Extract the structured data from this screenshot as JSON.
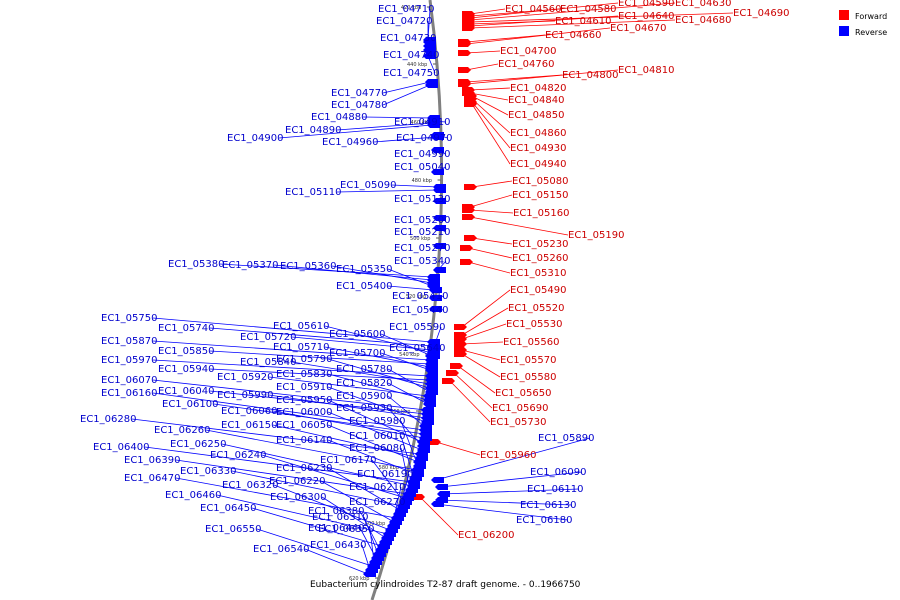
{
  "legend": {
    "forward_label": "Forward",
    "reverse_label": "Reverse"
  },
  "colors": {
    "forward": "#ff0000",
    "reverse": "#0000ff",
    "forward_label": "#cc0000",
    "reverse_label": "#0000cc",
    "backbone": "#808080"
  },
  "caption": "Eubacterium cylindroides T2-87 draft genome. - 0..1966750",
  "ticks": [
    "420 kbp",
    "440 kbp",
    "460 kbp",
    "480 kbp",
    "500 kbp",
    "520 kbp",
    "540 kbp",
    "560 kbp",
    "580 kbp",
    "600 kbp",
    "620 kbp"
  ],
  "forward_genes": [
    "EC1_04560",
    "EC1_04580",
    "EC1_04590",
    "EC1_04630",
    "EC1_04690",
    "EC1_04610",
    "EC1_04640",
    "EC1_04680",
    "EC1_04660",
    "EC1_04670",
    "EC1_04700",
    "EC1_04760",
    "EC1_04800",
    "EC1_04810",
    "EC1_04820",
    "EC1_04840",
    "EC1_04850",
    "EC1_04860",
    "EC1_04930",
    "EC1_04940",
    "EC1_05080",
    "EC1_05150",
    "EC1_05160",
    "EC1_05190",
    "EC1_05230",
    "EC1_05260",
    "EC1_05310",
    "EC1_05490",
    "EC1_05520",
    "EC1_05530",
    "EC1_05560",
    "EC1_05570",
    "EC1_05580",
    "EC1_05650",
    "EC1_05690",
    "EC1_05730",
    "EC1_05960",
    "EC1_06200"
  ],
  "reverse_genes": [
    "EC1_04710",
    "EC1_04720",
    "EC1_04730",
    "EC1_04740",
    "EC1_04750",
    "EC1_04770",
    "EC1_04780",
    "EC1_04880",
    "EC1_04910",
    "EC1_04890",
    "EC1_04900",
    "EC1_04970",
    "EC1_04960",
    "EC1_04990",
    "EC1_05040",
    "EC1_05090",
    "EC1_05110",
    "EC1_05130",
    "EC1_05200",
    "EC1_05210",
    "EC1_05270",
    "EC1_05340",
    "EC1_05380",
    "EC1_05370",
    "EC1_05360",
    "EC1_05350",
    "EC1_05400",
    "EC1_05410",
    "EC1_05440",
    "EC1_05750",
    "EC1_05740",
    "EC1_05720",
    "EC1_05610",
    "EC1_05600",
    "EC1_05590",
    "EC1_05870",
    "EC1_05850",
    "EC1_05710",
    "EC1_05700",
    "EC1_05640",
    "EC1_05970",
    "EC1_05940",
    "EC1_05840",
    "EC1_05790",
    "EC1_05780",
    "EC1_05920",
    "EC1_05830",
    "EC1_05820",
    "EC1_06070",
    "EC1_06040",
    "EC1_05990",
    "EC1_05910",
    "EC1_05900",
    "EC1_06160",
    "EC1_06100",
    "EC1_06060",
    "EC1_05950",
    "EC1_05930",
    "EC1_06000",
    "EC1_06280",
    "EC1_06150",
    "EC1_06050",
    "EC1_05980",
    "EC1_06260",
    "EC1_06140",
    "EC1_06010",
    "EC1_06400",
    "EC1_06250",
    "EC1_06080",
    "EC1_06390",
    "EC1_06240",
    "EC1_06170",
    "EC1_06330",
    "EC1_06230",
    "EC1_06190",
    "EC1_06470",
    "EC1_06220",
    "EC1_06210",
    "EC1_06320",
    "EC1_06460",
    "EC1_06300",
    "EC1_06270",
    "EC1_06450",
    "EC1_06380",
    "EC1_06310",
    "EC1_06440",
    "EC1_06350",
    "EC1_06550",
    "EC1_06430",
    "EC1_06540",
    "EC1_05890",
    "EC1_06090",
    "EC1_06110",
    "EC1_06130",
    "EC1_06180"
  ]
}
